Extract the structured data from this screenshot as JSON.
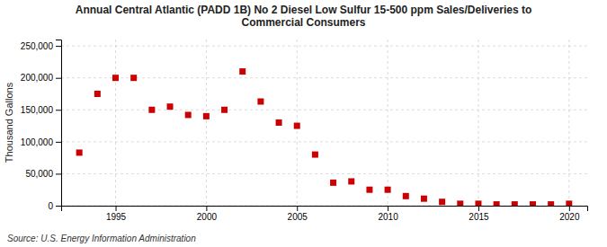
{
  "chart_data": {
    "type": "scatter",
    "title": "Annual Central Atlantic (PADD 1B) No 2 Diesel Low Sulfur 15-500 ppm Sales/Deliveries to\nCommercial Consumers",
    "y_label": "Thousand Gallons",
    "source": "Source: U.S. Energy Information Administration",
    "x": [
      1993,
      1994,
      1995,
      1996,
      1997,
      1998,
      1999,
      2000,
      2001,
      2002,
      2003,
      2004,
      2005,
      2006,
      2007,
      2008,
      2009,
      2010,
      2011,
      2012,
      2013,
      2014,
      2015,
      2016,
      2017,
      2018,
      2019,
      2020
    ],
    "values": [
      83000,
      175000,
      200000,
      200000,
      150000,
      155000,
      142000,
      140000,
      150000,
      210000,
      163000,
      130000,
      125000,
      80000,
      36000,
      38000,
      25000,
      25000,
      15000,
      11000,
      6000,
      3000,
      3000,
      2000,
      2000,
      2000,
      2000,
      3000
    ],
    "color": "#cc0000",
    "marker": "square",
    "xlim": [
      1992,
      2021
    ],
    "xticks": [
      1995,
      2000,
      2005,
      2010,
      2015,
      2020
    ],
    "ylim": [
      0,
      260000
    ],
    "yticks": [
      0,
      {
        "value": 50000,
        "label": "50,000"
      },
      {
        "value": 100000,
        "label": "100,000"
      },
      {
        "value": 150000,
        "label": "150,000"
      },
      {
        "value": 200000,
        "label": "200,000"
      },
      {
        "value": 250000,
        "label": "250,000"
      }
    ],
    "grid": true
  }
}
